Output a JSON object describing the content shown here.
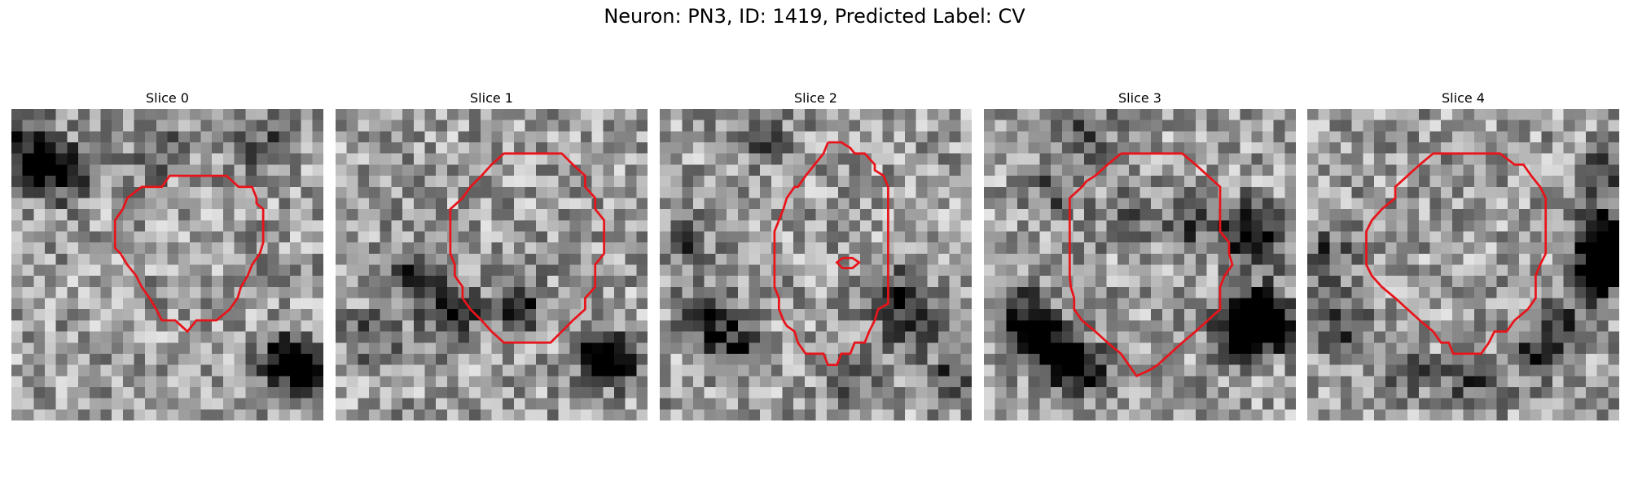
{
  "figure": {
    "title": "Neuron: PN3, ID: 1419, Predicted Label: CV",
    "contour_color": "#e8141a",
    "grid_size": 28,
    "panels": [
      {
        "title": "Slice 0",
        "seed": 11,
        "dark_spots": [
          [
            1,
            2,
            0.35
          ],
          [
            2,
            5,
            0.45
          ],
          [
            3,
            4,
            0.4
          ],
          [
            5,
            6,
            0.3
          ],
          [
            22,
            3,
            0.35
          ],
          [
            24,
            22,
            0.7
          ],
          [
            26,
            23,
            0.55
          ],
          [
            13,
            3,
            0.35
          ]
        ],
        "contour": [
          [
            15.2,
            6
          ],
          [
            19.3,
            6
          ],
          [
            20.4,
            7
          ],
          [
            21.6,
            7
          ],
          [
            22,
            8
          ],
          [
            22,
            8.5
          ],
          [
            22.6,
            9
          ],
          [
            22.6,
            10
          ],
          [
            22.6,
            10.5
          ],
          [
            22.6,
            11
          ],
          [
            22.6,
            12
          ],
          [
            22.3,
            13
          ],
          [
            21.6,
            14
          ],
          [
            21.2,
            15
          ],
          [
            20.6,
            16
          ],
          [
            20.3,
            17
          ],
          [
            19.6,
            18
          ],
          [
            18.4,
            19
          ],
          [
            17.3,
            19
          ],
          [
            16.6,
            19
          ],
          [
            15.8,
            20
          ],
          [
            14.7,
            19
          ],
          [
            13.5,
            19
          ],
          [
            13,
            18
          ],
          [
            12.4,
            17
          ],
          [
            11.7,
            16
          ],
          [
            11.2,
            15
          ],
          [
            10.4,
            14
          ],
          [
            9.8,
            13
          ],
          [
            9.3,
            12.5
          ],
          [
            9.3,
            11
          ],
          [
            9.3,
            10
          ],
          [
            10,
            9
          ],
          [
            10.4,
            8
          ],
          [
            11.7,
            7
          ],
          [
            12.6,
            7
          ],
          [
            13.5,
            7
          ],
          [
            14.2,
            6
          ],
          [
            15.2,
            6
          ]
        ],
        "extra_contours": []
      },
      {
        "title": "Slice 1",
        "seed": 23,
        "dark_spots": [
          [
            7,
            15,
            0.5
          ],
          [
            10,
            18,
            0.55
          ],
          [
            16,
            17,
            0.5
          ],
          [
            23,
            22,
            0.5
          ],
          [
            25,
            22,
            0.45
          ],
          [
            3,
            20,
            0.3
          ]
        ],
        "contour": [
          [
            17.1,
            4
          ],
          [
            20.3,
            4
          ],
          [
            21.3,
            5
          ],
          [
            22.4,
            6
          ],
          [
            22.4,
            7
          ],
          [
            23.3,
            8
          ],
          [
            23.3,
            9
          ],
          [
            24.1,
            10
          ],
          [
            24.1,
            11
          ],
          [
            24.1,
            12
          ],
          [
            24.1,
            13
          ],
          [
            23.3,
            14
          ],
          [
            23.3,
            15
          ],
          [
            23.3,
            16
          ],
          [
            22.4,
            17
          ],
          [
            22.4,
            18
          ],
          [
            21.3,
            19
          ],
          [
            20.3,
            20
          ],
          [
            19.3,
            21
          ],
          [
            17.1,
            21
          ],
          [
            16.1,
            21
          ],
          [
            15.1,
            21
          ],
          [
            14,
            20
          ],
          [
            13.1,
            19
          ],
          [
            12.1,
            18
          ],
          [
            11.4,
            17
          ],
          [
            11.4,
            16
          ],
          [
            10.7,
            15
          ],
          [
            10.7,
            14
          ],
          [
            10.3,
            13
          ],
          [
            10.3,
            12
          ],
          [
            10.3,
            11
          ],
          [
            10.3,
            10
          ],
          [
            10.3,
            9
          ],
          [
            11.4,
            8
          ],
          [
            12.1,
            7
          ],
          [
            13.1,
            6
          ],
          [
            14,
            5
          ],
          [
            15.1,
            4
          ],
          [
            16.1,
            4
          ],
          [
            17.1,
            4
          ]
        ],
        "extra_contours": []
      },
      {
        "title": "Slice 2",
        "seed": 37,
        "dark_spots": [
          [
            4,
            18,
            0.5
          ],
          [
            6,
            21,
            0.45
          ],
          [
            20,
            16,
            0.45
          ],
          [
            22,
            19,
            0.4
          ],
          [
            2,
            12,
            0.3
          ],
          [
            26,
            23,
            0.35
          ],
          [
            9,
            2,
            0.3
          ],
          [
            17,
            24,
            0.3
          ]
        ],
        "contour": [
          [
            15.1,
            3
          ],
          [
            16.3,
            3
          ],
          [
            17.1,
            3.5
          ],
          [
            17.5,
            4
          ],
          [
            18.4,
            4
          ],
          [
            19.3,
            5
          ],
          [
            19.3,
            5.5
          ],
          [
            20.1,
            6
          ],
          [
            20.5,
            7
          ],
          [
            20.5,
            8
          ],
          [
            20.5,
            9
          ],
          [
            20.5,
            10
          ],
          [
            20.5,
            11
          ],
          [
            20.5,
            12
          ],
          [
            20.5,
            13
          ],
          [
            20.5,
            14
          ],
          [
            20.5,
            15
          ],
          [
            20.5,
            16
          ],
          [
            20.5,
            17
          ],
          [
            20.5,
            17.5
          ],
          [
            19.6,
            18
          ],
          [
            19.3,
            19
          ],
          [
            18.8,
            20
          ],
          [
            18.4,
            21
          ],
          [
            17.5,
            21
          ],
          [
            17.1,
            22
          ],
          [
            16.3,
            22
          ],
          [
            15.9,
            23
          ],
          [
            15.1,
            23
          ],
          [
            14.7,
            22
          ],
          [
            13.9,
            22
          ],
          [
            13.1,
            22
          ],
          [
            12.4,
            21
          ],
          [
            12.1,
            20
          ],
          [
            11.4,
            19.5
          ],
          [
            11.1,
            19
          ],
          [
            10.7,
            18
          ],
          [
            10.7,
            17
          ],
          [
            10.3,
            16
          ],
          [
            10.3,
            15
          ],
          [
            10.3,
            14
          ],
          [
            10.3,
            13
          ],
          [
            10.3,
            12
          ],
          [
            10.3,
            11
          ],
          [
            10.7,
            10
          ],
          [
            11.1,
            9
          ],
          [
            11.4,
            8
          ],
          [
            12.1,
            7
          ],
          [
            12.4,
            7
          ],
          [
            13.1,
            6
          ],
          [
            13.9,
            5
          ],
          [
            14.7,
            4
          ],
          [
            15.1,
            3
          ]
        ],
        "extra_contours": [
          [
            [
              16.4,
              13.4
            ],
            [
              17.3,
              13.4
            ],
            [
              17.9,
              13.8
            ],
            [
              17.3,
              14.3
            ],
            [
              16.4,
              14.3
            ],
            [
              15.9,
              13.8
            ],
            [
              16.4,
              13.4
            ]
          ]
        ]
      },
      {
        "title": "Slice 3",
        "seed": 53,
        "dark_spots": [
          [
            3,
            18,
            0.6
          ],
          [
            5,
            21,
            0.55
          ],
          [
            7,
            22,
            0.5
          ],
          [
            9,
            23,
            0.45
          ],
          [
            24,
            18,
            0.7
          ],
          [
            25,
            19,
            0.65
          ],
          [
            22,
            20,
            0.55
          ],
          [
            23,
            10,
            0.5
          ],
          [
            24,
            12,
            0.45
          ],
          [
            9,
            2,
            0.3
          ],
          [
            12,
            9,
            0.25
          ],
          [
            18,
            10,
            0.3
          ],
          [
            6,
            7,
            0.3
          ]
        ],
        "contour": [
          [
            12.3,
            4
          ],
          [
            17.8,
            4
          ],
          [
            19,
            5
          ],
          [
            20.1,
            6
          ],
          [
            21.2,
            7
          ],
          [
            21.2,
            8
          ],
          [
            21.2,
            9
          ],
          [
            21.2,
            10
          ],
          [
            21.2,
            11
          ],
          [
            22,
            12
          ],
          [
            22,
            13
          ],
          [
            22.3,
            14
          ],
          [
            21.6,
            15
          ],
          [
            21.2,
            16
          ],
          [
            21.2,
            17
          ],
          [
            21.2,
            18
          ],
          [
            20.1,
            19
          ],
          [
            19,
            20
          ],
          [
            17.8,
            21
          ],
          [
            16.7,
            22
          ],
          [
            15.6,
            23
          ],
          [
            14.8,
            23.5
          ],
          [
            13.7,
            24
          ],
          [
            13,
            23
          ],
          [
            12.3,
            22
          ],
          [
            11.1,
            21
          ],
          [
            10,
            20
          ],
          [
            8.8,
            19
          ],
          [
            8.1,
            18
          ],
          [
            8.1,
            17
          ],
          [
            7.8,
            16
          ],
          [
            7.7,
            15
          ],
          [
            7.7,
            14
          ],
          [
            7.7,
            13
          ],
          [
            7.7,
            12
          ],
          [
            7.7,
            11
          ],
          [
            7.7,
            10
          ],
          [
            7.7,
            9
          ],
          [
            7.7,
            8
          ],
          [
            8.8,
            7
          ],
          [
            9.2,
            6.5
          ],
          [
            10,
            6
          ],
          [
            11.1,
            5
          ],
          [
            12.3,
            4
          ]
        ],
        "extra_contours": []
      },
      {
        "title": "Slice 4",
        "seed": 71,
        "dark_spots": [
          [
            26,
            11,
            0.75
          ],
          [
            27,
            13,
            0.7
          ],
          [
            25,
            15,
            0.6
          ],
          [
            1,
            13,
            0.4
          ],
          [
            3,
            19,
            0.35
          ],
          [
            8,
            23,
            0.4
          ],
          [
            14,
            24,
            0.35
          ],
          [
            20,
            22,
            0.45
          ],
          [
            22,
            19,
            0.4
          ],
          [
            26,
            5,
            0.35
          ]
        ],
        "contour": [
          [
            12,
            4
          ],
          [
            17.3,
            4
          ],
          [
            18.6,
            5
          ],
          [
            19.4,
            5
          ],
          [
            20.1,
            6
          ],
          [
            20.9,
            7
          ],
          [
            21.4,
            8
          ],
          [
            21.4,
            9
          ],
          [
            21.4,
            10
          ],
          [
            21.4,
            11
          ],
          [
            21.4,
            12
          ],
          [
            21.4,
            13
          ],
          [
            20.9,
            14
          ],
          [
            20.5,
            15
          ],
          [
            20.5,
            16
          ],
          [
            20.5,
            17
          ],
          [
            19.8,
            18
          ],
          [
            18.6,
            19
          ],
          [
            17.9,
            20
          ],
          [
            16.8,
            20
          ],
          [
            16.3,
            21
          ],
          [
            15.6,
            22
          ],
          [
            14.3,
            22
          ],
          [
            13.1,
            22
          ],
          [
            12.7,
            21
          ],
          [
            12,
            21
          ],
          [
            11.3,
            20
          ],
          [
            10.1,
            19
          ],
          [
            9,
            18
          ],
          [
            7.9,
            17
          ],
          [
            6.7,
            16
          ],
          [
            5.8,
            15
          ],
          [
            5.3,
            14
          ],
          [
            5.3,
            13
          ],
          [
            5.3,
            12
          ],
          [
            5.3,
            11
          ],
          [
            5.8,
            10
          ],
          [
            6.7,
            9
          ],
          [
            7.9,
            8
          ],
          [
            7.9,
            7
          ],
          [
            9,
            6
          ],
          [
            10.1,
            5
          ],
          [
            11.3,
            4
          ],
          [
            12,
            4
          ]
        ],
        "extra_contours": []
      }
    ]
  }
}
